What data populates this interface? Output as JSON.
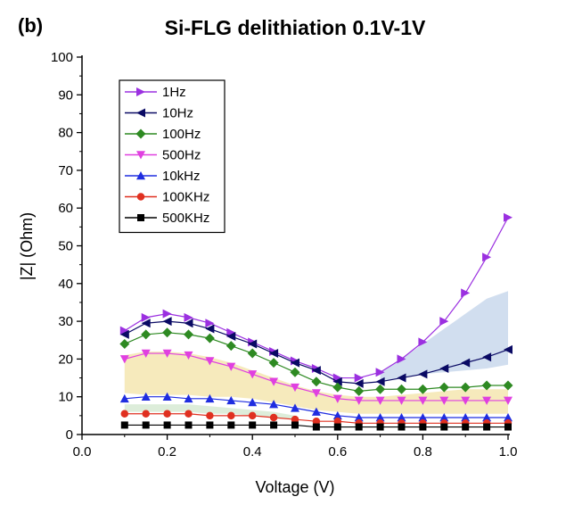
{
  "panel_label": "(b)",
  "chart_data": {
    "type": "line",
    "title": "Si-FLG delithiation 0.1V-1V",
    "xlabel": "Voltage (V)",
    "ylabel": "|Z| (Ohm)",
    "xlim": [
      0.0,
      1.0
    ],
    "ylim": [
      0,
      100
    ],
    "xticks": [
      "0.0",
      "0.2",
      "0.4",
      "0.6",
      "0.8",
      "1.0"
    ],
    "yticks": [
      "0",
      "10",
      "20",
      "30",
      "40",
      "50",
      "60",
      "70",
      "80",
      "90",
      "100"
    ],
    "grid": false,
    "legend_position": "top-left",
    "x": [
      0.1,
      0.15,
      0.2,
      0.25,
      0.3,
      0.35,
      0.4,
      0.45,
      0.5,
      0.55,
      0.6,
      0.65,
      0.7,
      0.75,
      0.8,
      0.85,
      0.9,
      0.95,
      1.0
    ],
    "series": [
      {
        "name": "1Hz",
        "marker": "triangle-right",
        "color": "#9b30e0",
        "values": [
          27.5,
          31,
          32,
          31,
          29.5,
          27,
          24.5,
          22,
          19.5,
          17.5,
          15,
          15,
          16.5,
          20,
          24.5,
          30,
          37.5,
          47,
          57.5
        ]
      },
      {
        "name": "10Hz",
        "marker": "triangle-left",
        "color": "#0a0a64",
        "values": [
          26.5,
          29.5,
          30,
          29.5,
          28,
          26,
          24,
          21.5,
          19,
          17,
          14,
          13.5,
          14,
          15,
          16,
          17.5,
          19,
          20.5,
          22.5
        ]
      },
      {
        "name": "100Hz",
        "marker": "diamond",
        "color": "#2e8a22",
        "values": [
          24,
          26.5,
          27,
          26.5,
          25.5,
          23.5,
          21.5,
          19,
          16.5,
          14,
          12.5,
          11.5,
          12,
          12,
          12,
          12.5,
          12.5,
          13,
          13
        ]
      },
      {
        "name": "500Hz",
        "marker": "triangle-down",
        "color": "#e040e0",
        "values": [
          20,
          21.5,
          21.5,
          21,
          19.5,
          18,
          16,
          14,
          12.5,
          11,
          9.5,
          9,
          9,
          9,
          9,
          9,
          9,
          9,
          9
        ]
      },
      {
        "name": "10kHz",
        "marker": "triangle-up",
        "color": "#1f2de0",
        "values": [
          9.5,
          10,
          10,
          9.5,
          9.5,
          9,
          8.5,
          8,
          7,
          6,
          5,
          4.5,
          4.5,
          4.5,
          4.5,
          4.5,
          4.5,
          4.5,
          4.5
        ]
      },
      {
        "name": "100KHz",
        "marker": "circle",
        "color": "#e03020",
        "values": [
          5.5,
          5.5,
          5.5,
          5.5,
          5,
          5,
          5,
          4.5,
          4,
          3.5,
          3.5,
          3,
          3,
          3,
          3,
          3,
          3,
          3,
          3
        ]
      },
      {
        "name": "500KHz",
        "marker": "square",
        "color": "#000000",
        "values": [
          2.5,
          2.5,
          2.5,
          2.5,
          2.5,
          2.5,
          2.5,
          2.5,
          2.5,
          2,
          2,
          2,
          2,
          2,
          2,
          2,
          2,
          2,
          2
        ]
      }
    ],
    "shaded_bands": [
      {
        "color": "#c9d8ec",
        "x": [
          0.7,
          0.75,
          0.8,
          0.85,
          0.9,
          0.95,
          1.0
        ],
        "upper": [
          16.5,
          20,
          24,
          28,
          32,
          36,
          38
        ],
        "lower": [
          14,
          15,
          16,
          16.5,
          17,
          17.5,
          18.5
        ]
      },
      {
        "color": "#f5e6b0",
        "x": [
          0.1,
          0.15,
          0.2,
          0.25,
          0.3,
          0.35,
          0.4,
          0.45,
          0.5,
          0.55,
          0.6,
          0.65,
          0.7,
          0.75,
          0.8,
          0.85,
          0.9,
          0.95,
          1.0
        ],
        "upper": [
          21,
          22,
          22,
          21.5,
          20.5,
          19,
          17,
          15,
          13,
          11.5,
          10.5,
          10,
          10,
          10.5,
          11,
          11.5,
          12,
          12,
          12
        ],
        "lower": [
          11,
          10.5,
          10.5,
          10.5,
          10,
          10,
          9.5,
          8.5,
          7.5,
          6.5,
          6,
          5.5,
          5.5,
          5.5,
          5.5,
          5.5,
          5.5,
          5.5,
          5.5
        ]
      },
      {
        "color": "#d7ead4",
        "x": [
          0.1,
          0.15,
          0.2,
          0.25,
          0.3,
          0.35,
          0.4,
          0.45,
          0.5
        ],
        "upper": [
          8,
          8,
          8,
          8,
          7.5,
          7,
          6.5,
          6,
          5
        ],
        "lower": [
          6,
          6,
          6,
          6,
          5.5,
          5.5,
          5,
          4.5,
          4
        ]
      }
    ]
  }
}
